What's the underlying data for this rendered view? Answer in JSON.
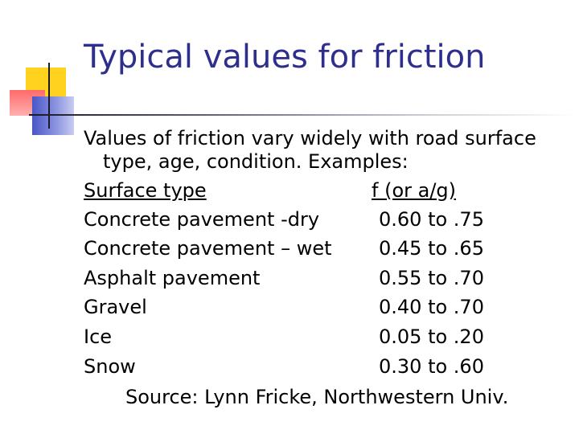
{
  "slide": {
    "title": "Typical values for friction",
    "intro_line1": "Values of friction vary widely with road surface",
    "intro_line2": "type, age, condition.  Examples:",
    "table": {
      "header_left": "Surface type",
      "header_right": "f (or a/g)",
      "rows": [
        {
          "surface": "Concrete pavement -dry",
          "value": "0.60 to .75"
        },
        {
          "surface": "Concrete pavement – wet",
          "value": "0.45 to .65"
        },
        {
          "surface": "Asphalt pavement",
          "value": "0.55 to .70"
        },
        {
          "surface": "Gravel",
          "value": "0.40 to .70"
        },
        {
          "surface": "Ice",
          "value": "0.05 to .20"
        },
        {
          "surface": "Snow",
          "value": "0.30 to .60"
        }
      ]
    },
    "source": "Source: Lynn Fricke, Northwestern Univ."
  },
  "colors": {
    "title": "#2e2e8c",
    "accent_yellow": "#ffd21f",
    "accent_red": "#ff6a6a",
    "accent_blue": "#4a56c8"
  }
}
